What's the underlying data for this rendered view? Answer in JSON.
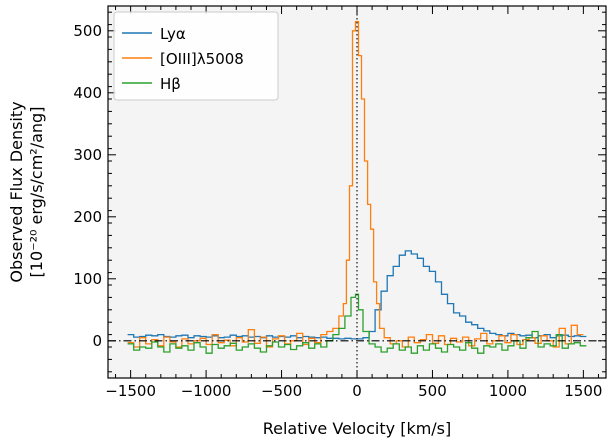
{
  "chart_data": {
    "type": "line",
    "xlabel": "Relative Velocity [km/s]",
    "ylabel_line1": "Observed Flux Density",
    "ylabel_line2": "[10⁻²⁰ erg/s/cm²/ang]",
    "xlim": [
      -1650,
      1650
    ],
    "ylim": [
      -60,
      540
    ],
    "xticks": [
      -1500,
      -1000,
      -500,
      0,
      500,
      1000,
      1500
    ],
    "xtick_labels": [
      "−1500",
      "−1000",
      "−500",
      "0",
      "500",
      "1000",
      "1500"
    ],
    "yticks": [
      0,
      100,
      200,
      300,
      400,
      500
    ],
    "ytick_labels": [
      "0",
      "100",
      "200",
      "300",
      "400",
      "500"
    ],
    "legend_position": "top-left",
    "background": "#f4f4f4",
    "reference_lines": {
      "zero_velocity_vertical": true,
      "zero_flux_horizontal": true
    },
    "series": [
      {
        "name": "Lyα",
        "color": "#1f77b4",
        "step": true,
        "x": [
          -1500,
          -1460,
          -1420,
          -1380,
          -1340,
          -1300,
          -1260,
          -1220,
          -1180,
          -1140,
          -1100,
          -1060,
          -1020,
          -980,
          -940,
          -900,
          -860,
          -820,
          -780,
          -740,
          -700,
          -660,
          -620,
          -580,
          -540,
          -500,
          -460,
          -420,
          -380,
          -340,
          -300,
          -260,
          -220,
          -180,
          -140,
          -100,
          -60,
          -20,
          20,
          60,
          100,
          140,
          180,
          220,
          260,
          300,
          340,
          380,
          420,
          460,
          500,
          540,
          580,
          620,
          660,
          700,
          740,
          780,
          820,
          860,
          900,
          940,
          980,
          1020,
          1060,
          1100,
          1140,
          1180,
          1220,
          1260,
          1300,
          1340,
          1380,
          1420,
          1460,
          1500
        ],
        "y": [
          10,
          6,
          7,
          9,
          8,
          10,
          7,
          6,
          8,
          9,
          5,
          8,
          7,
          6,
          8,
          5,
          6,
          9,
          7,
          8,
          6,
          7,
          5,
          8,
          6,
          7,
          6,
          8,
          5,
          7,
          6,
          5,
          6,
          4,
          4,
          3,
          4,
          3,
          3,
          5,
          15,
          50,
          80,
          105,
          120,
          138,
          145,
          140,
          133,
          120,
          112,
          95,
          75,
          60,
          45,
          40,
          30,
          26,
          20,
          16,
          12,
          10,
          8,
          12,
          10,
          8,
          9,
          5,
          8,
          10,
          5,
          8,
          9,
          7,
          8,
          7
        ]
      },
      {
        "name": "[OIII]λ5008",
        "color": "#ff7f0e",
        "step": true,
        "x": [
          -1500,
          -1460,
          -1420,
          -1380,
          -1340,
          -1300,
          -1260,
          -1220,
          -1180,
          -1140,
          -1100,
          -1060,
          -1020,
          -980,
          -940,
          -900,
          -860,
          -820,
          -780,
          -740,
          -700,
          -660,
          -620,
          -580,
          -540,
          -500,
          -460,
          -420,
          -380,
          -340,
          -300,
          -260,
          -220,
          -180,
          -140,
          -100,
          -80,
          -60,
          -40,
          -20,
          0,
          20,
          40,
          60,
          80,
          100,
          120,
          140,
          160,
          200,
          240,
          280,
          320,
          360,
          400,
          440,
          480,
          520,
          560,
          600,
          640,
          680,
          720,
          760,
          800,
          840,
          880,
          920,
          960,
          1000,
          1040,
          1080,
          1120,
          1160,
          1200,
          1240,
          1280,
          1320,
          1360,
          1400,
          1440,
          1480
        ],
        "y": [
          -3,
          -10,
          5,
          -5,
          2,
          -8,
          6,
          -2,
          -10,
          3,
          -5,
          0,
          4,
          -6,
          10,
          -3,
          1,
          -8,
          5,
          -2,
          18,
          -4,
          6,
          -10,
          3,
          8,
          -5,
          0,
          12,
          -6,
          4,
          -3,
          10,
          15,
          20,
          40,
          60,
          130,
          250,
          500,
          515,
          460,
          390,
          290,
          220,
          180,
          95,
          60,
          20,
          5,
          -5,
          0,
          -10,
          6,
          -3,
          2,
          10,
          -4,
          8,
          -6,
          4,
          -2,
          6,
          -8,
          3,
          12,
          -5,
          0,
          8,
          -3,
          10,
          -6,
          2,
          5,
          -4,
          8,
          0,
          -10,
          20,
          -5,
          25,
          10
        ]
      },
      {
        "name": "Hβ",
        "color": "#2ca02c",
        "step": true,
        "x": [
          -1500,
          -1460,
          -1420,
          -1380,
          -1340,
          -1300,
          -1260,
          -1220,
          -1180,
          -1140,
          -1100,
          -1060,
          -1020,
          -980,
          -940,
          -900,
          -860,
          -820,
          -780,
          -740,
          -700,
          -660,
          -620,
          -580,
          -540,
          -500,
          -460,
          -420,
          -380,
          -340,
          -300,
          -260,
          -220,
          -180,
          -140,
          -100,
          -60,
          -20,
          0,
          20,
          60,
          100,
          140,
          180,
          220,
          260,
          300,
          340,
          380,
          420,
          460,
          500,
          540,
          580,
          620,
          660,
          700,
          740,
          780,
          820,
          860,
          900,
          940,
          980,
          1020,
          1060,
          1100,
          1140,
          1180,
          1220,
          1260,
          1300,
          1340,
          1380,
          1420,
          1460,
          1500
        ],
        "y": [
          -5,
          -15,
          -10,
          -12,
          -2,
          -10,
          -18,
          -5,
          -12,
          -8,
          -15,
          -3,
          -10,
          -20,
          -6,
          -12,
          -8,
          -4,
          -15,
          -10,
          -5,
          -12,
          -18,
          -8,
          -2,
          -10,
          -6,
          -14,
          -8,
          -3,
          -12,
          -5,
          -10,
          0,
          10,
          20,
          40,
          70,
          75,
          50,
          15,
          -5,
          -10,
          -18,
          -12,
          -5,
          -15,
          -10,
          -20,
          -8,
          -15,
          -5,
          -12,
          -18,
          -6,
          -10,
          -15,
          -3,
          -12,
          -20,
          -8,
          -10,
          -5,
          -15,
          -8,
          0,
          -12,
          5,
          15,
          -10,
          -5,
          -8,
          10,
          -12,
          -5,
          -3,
          -8
        ]
      }
    ]
  }
}
